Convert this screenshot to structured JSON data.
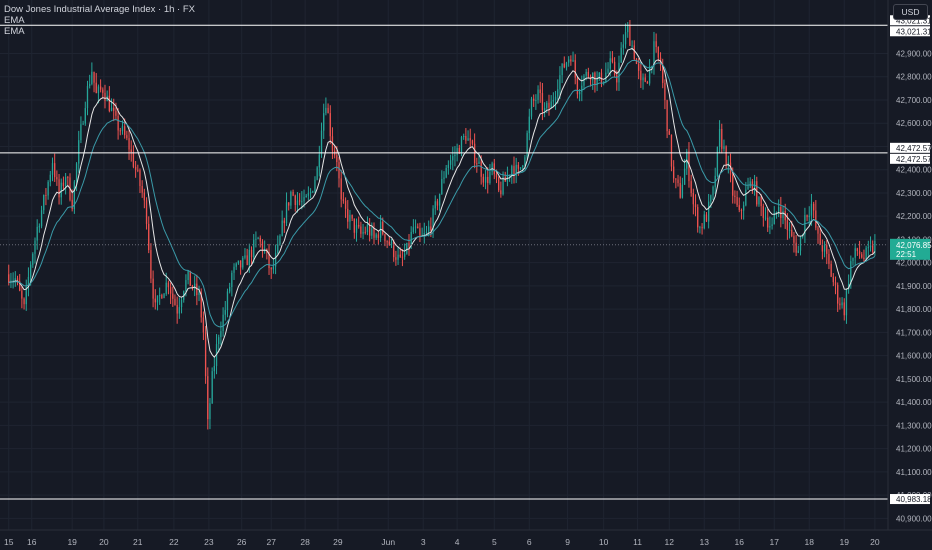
{
  "legend": {
    "title": "Dow Jones Industrial Average Index · 1h · FX",
    "ema1": "EMA",
    "ema2": "EMA"
  },
  "currency": "USD",
  "colors": {
    "up": "#26a69a",
    "down": "#ef5350",
    "ema_fast": "#e6e6e6",
    "ema_slow": "#3a9aa8",
    "grid": "#1f2431",
    "bg": "#161a25",
    "text": "#b2b5be",
    "hline": "#ffffff",
    "price_tag": "#22ab94"
  },
  "chart_data": {
    "type": "candlestick",
    "symbol": "Dow Jones Industrial Average Index",
    "interval": "1h",
    "source": "FX",
    "y_axis": {
      "ticks": [
        40900,
        41000,
        41100,
        41200,
        41300,
        41400,
        41500,
        41600,
        41700,
        41800,
        41900,
        42000,
        42100,
        42200,
        42300,
        42400,
        42500,
        42600,
        42700,
        42800,
        42900
      ],
      "tick_labels": [
        "40,900.00",
        "41,000.00",
        "41,100.00",
        "41,200.00",
        "41,300.00",
        "41,400.00",
        "41,500.00",
        "41,600.00",
        "41,700.00",
        "41,800.00",
        "41,900.00",
        "42,000.00",
        "42,100.00",
        "42,200.00",
        "42,300.00",
        "42,400.00",
        "42,500.00",
        "42,600.00",
        "42,700.00",
        "42,800.00",
        "42,900.00"
      ],
      "range": [
        40850,
        43130
      ]
    },
    "x_axis": {
      "labels": [
        "15",
        "16",
        "19",
        "20",
        "21",
        "22",
        "23",
        "26",
        "27",
        "28",
        "29",
        "Jun",
        "3",
        "4",
        "5",
        "6",
        "9",
        "10",
        "11",
        "12",
        "13",
        "16",
        "17",
        "18",
        "19",
        "20"
      ],
      "positions": [
        0,
        10.5,
        29,
        43.5,
        59,
        75.5,
        91.5,
        106.5,
        120,
        135.5,
        150.5,
        173.5,
        189.5,
        205,
        222,
        238,
        255.5,
        272,
        287.5,
        302,
        318,
        334,
        350,
        366,
        382,
        396
      ]
    },
    "horizontal_lines": [
      {
        "value": 43021.31,
        "label": "43,021.31"
      },
      {
        "value": 42472.57,
        "label": "42,472.57"
      },
      {
        "value": 40983.18,
        "label": "40,983.18"
      }
    ],
    "last_price": {
      "value": 42076.85,
      "label": "42,076.85",
      "countdown": "22:51"
    },
    "ema_labels": [
      "EMA",
      "EMA"
    ],
    "close_path": [
      [
        0,
        41950
      ],
      [
        3,
        41930
      ],
      [
        7,
        41800
      ],
      [
        10,
        42000
      ],
      [
        13,
        42150
      ],
      [
        17,
        42300
      ],
      [
        20,
        42440
      ],
      [
        23,
        42280
      ],
      [
        26,
        42380
      ],
      [
        29,
        42260
      ],
      [
        32,
        42500
      ],
      [
        35,
        42700
      ],
      [
        38,
        42830
      ],
      [
        40,
        42720
      ],
      [
        43,
        42750
      ],
      [
        46,
        42680
      ],
      [
        49,
        42600
      ],
      [
        52,
        42560
      ],
      [
        55,
        42500
      ],
      [
        58,
        42400
      ],
      [
        61,
        42300
      ],
      [
        63,
        42200
      ],
      [
        65,
        41950
      ],
      [
        67,
        41800
      ],
      [
        70,
        41880
      ],
      [
        73,
        41920
      ],
      [
        75,
        41850
      ],
      [
        77,
        41800
      ],
      [
        80,
        41900
      ],
      [
        82,
        41930
      ],
      [
        85,
        41880
      ],
      [
        87,
        41850
      ],
      [
        89,
        41700
      ],
      [
        91,
        41300
      ],
      [
        93,
        41500
      ],
      [
        96,
        41700
      ],
      [
        99,
        41800
      ],
      [
        102,
        41950
      ],
      [
        105,
        41980
      ],
      [
        108,
        42000
      ],
      [
        111,
        42050
      ],
      [
        114,
        42100
      ],
      [
        117,
        42050
      ],
      [
        120,
        41950
      ],
      [
        123,
        42050
      ],
      [
        126,
        42200
      ],
      [
        129,
        42300
      ],
      [
        132,
        42270
      ],
      [
        135,
        42250
      ],
      [
        138,
        42300
      ],
      [
        141,
        42400
      ],
      [
        143,
        42600
      ],
      [
        145,
        42700
      ],
      [
        148,
        42500
      ],
      [
        150,
        42450
      ],
      [
        152,
        42250
      ],
      [
        155,
        42200
      ],
      [
        158,
        42150
      ],
      [
        161,
        42120
      ],
      [
        164,
        42150
      ],
      [
        167,
        42100
      ],
      [
        170,
        42150
      ],
      [
        173,
        42100
      ],
      [
        176,
        42050
      ],
      [
        179,
        42000
      ],
      [
        182,
        42050
      ],
      [
        185,
        42150
      ],
      [
        188,
        42100
      ],
      [
        191,
        42120
      ],
      [
        194,
        42200
      ],
      [
        197,
        42300
      ],
      [
        200,
        42420
      ],
      [
        203,
        42450
      ],
      [
        206,
        42500
      ],
      [
        209,
        42550
      ],
      [
        212,
        42480
      ],
      [
        215,
        42420
      ],
      [
        218,
        42350
      ],
      [
        221,
        42400
      ],
      [
        224,
        42300
      ],
      [
        227,
        42350
      ],
      [
        230,
        42420
      ],
      [
        233,
        42380
      ],
      [
        236,
        42480
      ],
      [
        239,
        42680
      ],
      [
        242,
        42720
      ],
      [
        245,
        42650
      ],
      [
        248,
        42680
      ],
      [
        251,
        42780
      ],
      [
        254,
        42850
      ],
      [
        257,
        42900
      ],
      [
        260,
        42750
      ],
      [
        263,
        42800
      ],
      [
        266,
        42820
      ],
      [
        269,
        42780
      ],
      [
        272,
        42800
      ],
      [
        275,
        42850
      ],
      [
        278,
        42800
      ],
      [
        281,
        42950
      ],
      [
        283,
        43000
      ],
      [
        286,
        42900
      ],
      [
        289,
        42760
      ],
      [
        292,
        42800
      ],
      [
        295,
        42920
      ],
      [
        298,
        42850
      ],
      [
        301,
        42600
      ],
      [
        304,
        42350
      ],
      [
        307,
        42300
      ],
      [
        310,
        42450
      ],
      [
        313,
        42250
      ],
      [
        316,
        42150
      ],
      [
        319,
        42200
      ],
      [
        322,
        42300
      ],
      [
        325,
        42550
      ],
      [
        328,
        42450
      ],
      [
        331,
        42300
      ],
      [
        334,
        42200
      ],
      [
        337,
        42300
      ],
      [
        340,
        42350
      ],
      [
        343,
        42250
      ],
      [
        346,
        42200
      ],
      [
        349,
        42150
      ],
      [
        352,
        42250
      ],
      [
        355,
        42180
      ],
      [
        358,
        42100
      ],
      [
        361,
        42050
      ],
      [
        364,
        42200
      ],
      [
        367,
        42250
      ],
      [
        370,
        42100
      ],
      [
        373,
        42050
      ],
      [
        376,
        41950
      ],
      [
        379,
        41850
      ],
      [
        382,
        41800
      ],
      [
        385,
        42000
      ],
      [
        388,
        42050
      ],
      [
        391,
        42020
      ],
      [
        394,
        42050
      ],
      [
        396,
        42077
      ]
    ],
    "price_range_note": "candles span roughly 41,150 to 43,130"
  }
}
